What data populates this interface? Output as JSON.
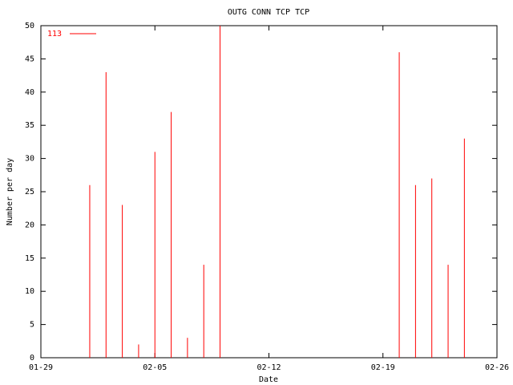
{
  "chart_data": {
    "type": "impulse",
    "title": "OUTG CONN TCP TCP",
    "x_label": "Date",
    "y_label": "Number per day",
    "x": [
      "02-01",
      "02-02",
      "02-03",
      "02-04",
      "02-05",
      "02-06",
      "02-07",
      "02-08",
      "02-09",
      "02-20",
      "02-21",
      "02-22",
      "02-23",
      "02-24"
    ],
    "series": [
      {
        "name": "113",
        "color": "#ff0000",
        "values": [
          26,
          43,
          23,
          2,
          31,
          37,
          3,
          14,
          50,
          46,
          26,
          27,
          14,
          33
        ]
      }
    ],
    "xlim": [
      "01-29",
      "02-26"
    ],
    "xticks": [
      "01-29",
      "02-05",
      "02-12",
      "02-19",
      "02-26"
    ],
    "ylim": [
      0,
      50
    ],
    "yticks": [
      0,
      5,
      10,
      15,
      20,
      25,
      30,
      35,
      40,
      45,
      50
    ],
    "legend": "top-left"
  }
}
